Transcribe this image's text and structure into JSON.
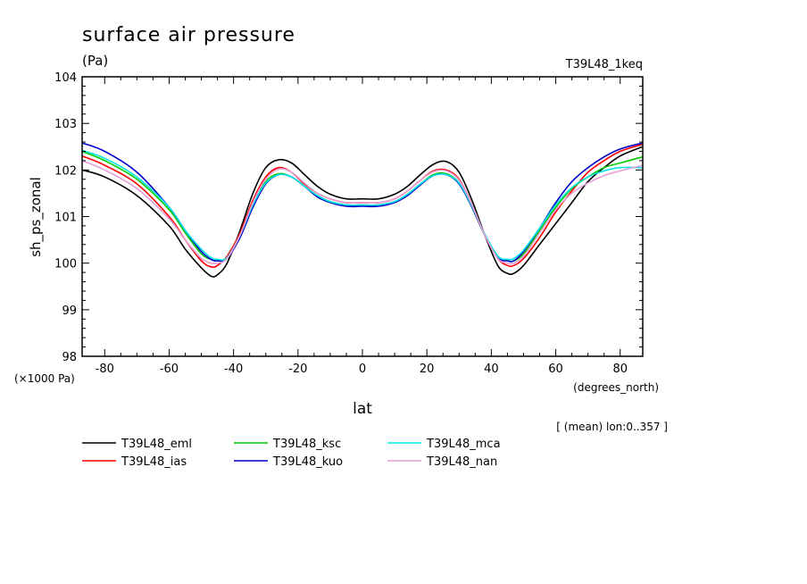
{
  "chart_data": {
    "type": "line",
    "title": "surface air pressure",
    "units": "(Pa)",
    "experiment": "T39L48_1keq",
    "xlabel": "lat",
    "xunits": "(degrees_north)",
    "ylabel": "sh_ps_zonal",
    "yscale_note": "(×1000 Pa)",
    "footnote": "[ (mean) lon:0..357 ]",
    "xlim": [
      -87,
      87
    ],
    "ylim": [
      98,
      104
    ],
    "xticks": [
      -80,
      -60,
      -40,
      -20,
      0,
      20,
      40,
      60,
      80
    ],
    "yticks": [
      98,
      99,
      100,
      101,
      102,
      103,
      104
    ],
    "xtick_labels": [
      "-80",
      "-60",
      "-40",
      "-20",
      "0",
      "20",
      "40",
      "60",
      "80"
    ],
    "ytick_labels": [
      "98",
      "99",
      "100",
      "101",
      "102",
      "103",
      "104"
    ],
    "grid": false,
    "legend_position": "bottom",
    "x": [
      -87,
      -80,
      -70,
      -60,
      -55,
      -50,
      -47,
      -45,
      -42,
      -38,
      -34,
      -30,
      -26,
      -22,
      -18,
      -14,
      -10,
      -5,
      0,
      5,
      10,
      14,
      18,
      22,
      26,
      30,
      34,
      38,
      42,
      45,
      47,
      50,
      55,
      60,
      65,
      70,
      75,
      80,
      87
    ],
    "series": [
      {
        "name": "T39L48_eml",
        "color": "#000000",
        "values": [
          102.0,
          101.85,
          101.45,
          100.8,
          100.3,
          99.9,
          99.72,
          99.75,
          100.0,
          100.7,
          101.5,
          102.05,
          102.22,
          102.15,
          101.9,
          101.65,
          101.48,
          101.38,
          101.38,
          101.38,
          101.48,
          101.65,
          101.9,
          102.12,
          102.18,
          101.95,
          101.35,
          100.6,
          99.95,
          99.78,
          99.78,
          99.95,
          100.4,
          100.85,
          101.3,
          101.75,
          102.05,
          102.3,
          102.5
        ]
      },
      {
        "name": "T39L48_ias",
        "color": "#ff0000",
        "values": [
          102.3,
          102.1,
          101.7,
          101.0,
          100.5,
          100.05,
          99.92,
          99.95,
          100.15,
          100.65,
          101.35,
          101.85,
          102.05,
          101.95,
          101.7,
          101.5,
          101.38,
          101.3,
          101.3,
          101.3,
          101.38,
          101.55,
          101.78,
          101.98,
          102.0,
          101.8,
          101.25,
          100.6,
          100.1,
          99.95,
          99.95,
          100.1,
          100.55,
          101.1,
          101.55,
          101.95,
          102.2,
          102.4,
          102.55
        ]
      },
      {
        "name": "T39L48_ksc",
        "color": "#00cc00",
        "values": [
          102.4,
          102.2,
          101.8,
          101.15,
          100.65,
          100.2,
          100.08,
          100.05,
          100.1,
          100.6,
          101.25,
          101.75,
          101.92,
          101.85,
          101.65,
          101.45,
          101.32,
          101.25,
          101.25,
          101.25,
          101.32,
          101.48,
          101.7,
          101.9,
          101.92,
          101.72,
          101.2,
          100.6,
          100.15,
          100.05,
          100.05,
          100.2,
          100.7,
          101.2,
          101.6,
          101.85,
          102.05,
          102.15,
          102.28
        ]
      },
      {
        "name": "T39L48_kuo",
        "color": "#0000cc",
        "values": [
          102.58,
          102.4,
          101.95,
          101.2,
          100.7,
          100.25,
          100.08,
          100.05,
          100.1,
          100.55,
          101.2,
          101.7,
          101.9,
          101.85,
          101.65,
          101.42,
          101.3,
          101.22,
          101.22,
          101.22,
          101.3,
          101.45,
          101.68,
          101.88,
          101.9,
          101.7,
          101.2,
          100.6,
          100.12,
          100.05,
          100.05,
          100.25,
          100.75,
          101.3,
          101.75,
          102.05,
          102.28,
          102.45,
          102.58
        ]
      },
      {
        "name": "T39L48_mca",
        "color": "#00e5e5",
        "values": [
          102.42,
          102.25,
          101.85,
          101.2,
          100.7,
          100.3,
          100.12,
          100.08,
          100.12,
          100.6,
          101.25,
          101.72,
          101.9,
          101.85,
          101.65,
          101.45,
          101.32,
          101.25,
          101.25,
          101.25,
          101.32,
          101.48,
          101.7,
          101.88,
          101.9,
          101.72,
          101.22,
          100.62,
          100.15,
          100.08,
          100.1,
          100.28,
          100.75,
          101.25,
          101.62,
          101.85,
          101.98,
          102.05,
          102.05
        ]
      },
      {
        "name": "T39L48_nan",
        "color": "#e6a0d8",
        "values": [
          102.2,
          102.0,
          101.6,
          100.95,
          100.5,
          100.1,
          100.0,
          100.0,
          100.1,
          100.6,
          101.3,
          101.8,
          102.02,
          101.95,
          101.72,
          101.5,
          101.38,
          101.3,
          101.3,
          101.3,
          101.38,
          101.55,
          101.78,
          101.96,
          101.98,
          101.78,
          101.25,
          100.6,
          100.1,
          100.0,
          100.0,
          100.15,
          100.65,
          101.15,
          101.5,
          101.72,
          101.88,
          101.98,
          102.1
        ]
      }
    ]
  }
}
